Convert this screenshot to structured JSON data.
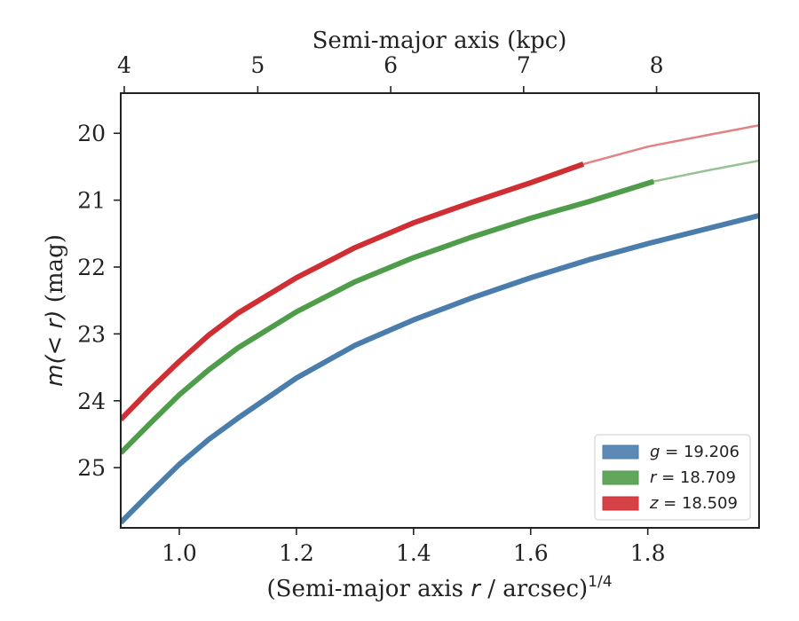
{
  "chart_data": {
    "type": "line",
    "xlabel_bottom": {
      "prefix": "(Semi-major axis ",
      "var": "r",
      "mid": " / arcsec)",
      "sup": "1/4"
    },
    "xlabel_top": "Semi-major axis (kpc)",
    "ylabel": {
      "var": "m(< r)",
      "unit": " (mag)"
    },
    "xlim": [
      0.9,
      1.99
    ],
    "ylim": [
      25.9,
      19.4
    ],
    "y_inverted": true,
    "xticks_bottom": [
      1.0,
      1.2,
      1.4,
      1.6,
      1.8
    ],
    "xtick_labels_bottom": [
      "1.0",
      "1.2",
      "1.4",
      "1.6",
      "1.8"
    ],
    "xticks_top_kpc": [
      4,
      5,
      6,
      7,
      8
    ],
    "xtick_labels_top": [
      "4",
      "5",
      "6",
      "7",
      "8"
    ],
    "top_axis_positions": [
      0.906,
      1.134,
      1.361,
      1.588,
      1.815
    ],
    "yticks": [
      20,
      21,
      22,
      23,
      24,
      25
    ],
    "ytick_labels": [
      "20",
      "21",
      "22",
      "23",
      "24",
      "25"
    ],
    "legend_position": "lower-right",
    "grid": false,
    "series": [
      {
        "band": "g",
        "name": "g = 19.206",
        "legend_var": "g",
        "legend_value": "= 19.206",
        "color": "#4a7dac",
        "measured_x": [
          0.9,
          0.95,
          1.0,
          1.05,
          1.1,
          1.2,
          1.3,
          1.4,
          1.5,
          1.6,
          1.7,
          1.8,
          1.9,
          1.99
        ],
        "measured_y": [
          25.82,
          25.38,
          24.95,
          24.58,
          24.26,
          23.66,
          23.17,
          22.79,
          22.46,
          22.16,
          21.89,
          21.65,
          21.43,
          21.23
        ],
        "extrap_x": [],
        "extrap_y": []
      },
      {
        "band": "r",
        "name": "r = 18.709",
        "legend_var": "r",
        "legend_value": "= 18.709",
        "color": "#4f9d4a",
        "measured_x": [
          0.9,
          0.95,
          1.0,
          1.05,
          1.1,
          1.2,
          1.3,
          1.4,
          1.5,
          1.6,
          1.7,
          1.81
        ],
        "measured_y": [
          24.78,
          24.34,
          23.91,
          23.54,
          23.21,
          22.67,
          22.22,
          21.86,
          21.55,
          21.27,
          21.02,
          20.72
        ],
        "extrap_x": [
          1.81,
          1.9,
          1.99
        ],
        "extrap_y": [
          20.72,
          20.56,
          20.41
        ]
      },
      {
        "band": "z",
        "name": "z = 18.509",
        "legend_var": "z",
        "legend_value": "= 18.509",
        "color": "#cf2e33",
        "measured_x": [
          0.9,
          0.95,
          1.0,
          1.05,
          1.1,
          1.2,
          1.3,
          1.4,
          1.5,
          1.6,
          1.69
        ],
        "measured_y": [
          24.28,
          23.83,
          23.41,
          23.02,
          22.69,
          22.16,
          21.71,
          21.34,
          21.03,
          20.74,
          20.46
        ],
        "extrap_x": [
          1.69,
          1.8,
          1.9,
          1.99
        ],
        "extrap_y": [
          20.46,
          20.2,
          20.03,
          19.88
        ]
      }
    ]
  }
}
